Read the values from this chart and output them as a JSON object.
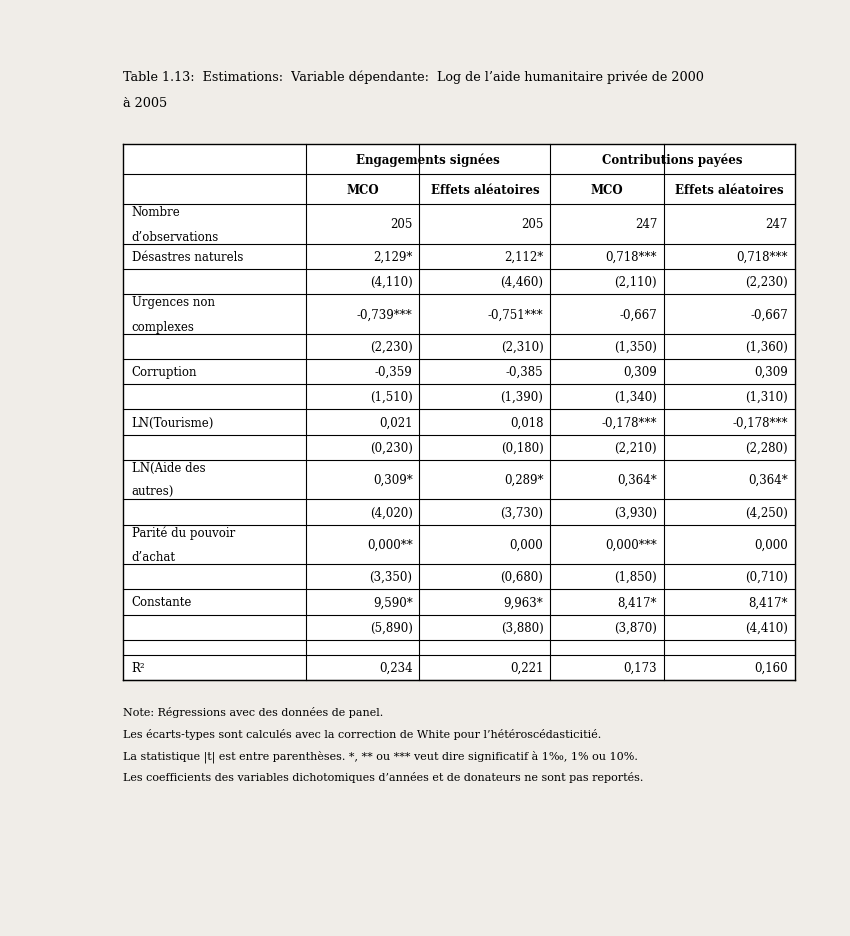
{
  "title_line1": "Table 1.13:  Estimations:  Variable dépendante:  Log de l’aide humanitaire privée de 2000",
  "title_line2": "à 2005",
  "col_header1_eng": "Engagements signées",
  "col_header1_cont": "Contributions payées",
  "col_header2": [
    "MCO",
    "Effets aléatoires",
    "MCO",
    "Effets aléatoires"
  ],
  "rows": [
    {
      "label": [
        "Nombre",
        "d’observations"
      ],
      "vals": [
        "205",
        "205",
        "247",
        "247"
      ],
      "nlines": 2
    },
    {
      "label": [
        "Désastres naturels"
      ],
      "vals": [
        "2,129*",
        "2,112*",
        "0,718***",
        "0,718***"
      ],
      "nlines": 1
    },
    {
      "label": [
        ""
      ],
      "vals": [
        "(4,110)",
        "(4,460)",
        "(2,110)",
        "(2,230)"
      ],
      "nlines": 1
    },
    {
      "label": [
        "Urgences non",
        "complexes"
      ],
      "vals": [
        "-0,739***",
        "-0,751***",
        "-0,667",
        "-0,667"
      ],
      "nlines": 2
    },
    {
      "label": [
        ""
      ],
      "vals": [
        "(2,230)",
        "(2,310)",
        "(1,350)",
        "(1,360)"
      ],
      "nlines": 1
    },
    {
      "label": [
        "Corruption"
      ],
      "vals": [
        "-0,359",
        "-0,385",
        "0,309",
        "0,309"
      ],
      "nlines": 1
    },
    {
      "label": [
        ""
      ],
      "vals": [
        "(1,510)",
        "(1,390)",
        "(1,340)",
        "(1,310)"
      ],
      "nlines": 1
    },
    {
      "label": [
        "LN(Tourisme)"
      ],
      "vals": [
        "0,021",
        "0,018",
        "-0,178***",
        "-0,178***"
      ],
      "nlines": 1
    },
    {
      "label": [
        ""
      ],
      "vals": [
        "(0,230)",
        "(0,180)",
        "(2,210)",
        "(2,280)"
      ],
      "nlines": 1
    },
    {
      "label": [
        "LN(Aide des",
        "autres)"
      ],
      "vals": [
        "0,309*",
        "0,289*",
        "0,364*",
        "0,364*"
      ],
      "nlines": 2
    },
    {
      "label": [
        ""
      ],
      "vals": [
        "(4,020)",
        "(3,730)",
        "(3,930)",
        "(4,250)"
      ],
      "nlines": 1
    },
    {
      "label": [
        "Parité du pouvoir",
        "d’achat"
      ],
      "vals": [
        "0,000**",
        "0,000",
        "0,000***",
        "0,000"
      ],
      "nlines": 2
    },
    {
      "label": [
        ""
      ],
      "vals": [
        "(3,350)",
        "(0,680)",
        "(1,850)",
        "(0,710)"
      ],
      "nlines": 1
    },
    {
      "label": [
        "Constante"
      ],
      "vals": [
        "9,590*",
        "9,963*",
        "8,417*",
        "8,417*"
      ],
      "nlines": 1
    },
    {
      "label": [
        ""
      ],
      "vals": [
        "(5,890)",
        "(3,880)",
        "(3,870)",
        "(4,410)"
      ],
      "nlines": 1
    },
    {
      "label": [
        ""
      ],
      "vals": [
        "",
        "",
        "",
        ""
      ],
      "nlines": 1
    },
    {
      "label": [
        "R²"
      ],
      "vals": [
        "0,234",
        "0,221",
        "0,173",
        "0,160"
      ],
      "nlines": 1
    }
  ],
  "note_lines": [
    "Note: Régressions avec des données de panel.",
    "Les écarts-types sont calculés avec la correction de White pour l’hétéroscédasticitié.",
    "La statistique |t| est entre parenthèses. *, ** ou *** veut dire significatif à 1‰, 1% ou 10%.",
    "Les coefficients des variables dichotomiques d’années et de donateurs ne sont pas reportés."
  ],
  "bg_color": "#f0ede8"
}
